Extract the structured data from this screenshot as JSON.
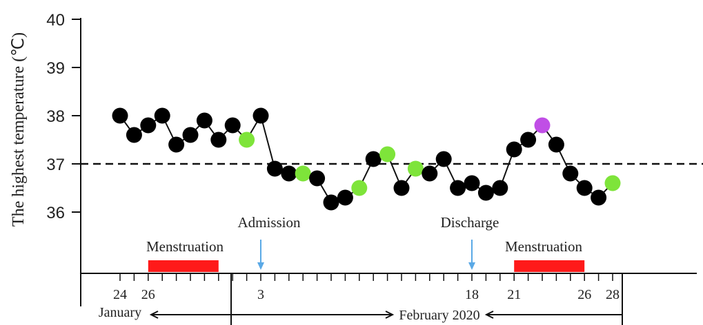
{
  "chart_data": {
    "type": "line",
    "ylabel": "The highest temperature (℃)",
    "ylim": [
      35,
      40
    ],
    "yticks": [
      "40",
      "39",
      "38",
      "37",
      "36"
    ],
    "reference_line": 37,
    "x_tick_labels": [
      "24",
      "26",
      "3",
      "18",
      "21",
      "26",
      "28"
    ],
    "month_labels": {
      "january": "January",
      "february": "February 2020"
    },
    "annotations": {
      "admission": "Admission",
      "discharge": "Discharge",
      "menstruation_1": "Menstruation",
      "menstruation_2": "Menstruation"
    },
    "point_colors": {
      "default": "#000000",
      "green": "#7ee43a",
      "purple": "#c04ee6"
    },
    "series": [
      {
        "values": [
          38.0,
          37.6,
          37.8,
          38.0,
          37.4,
          37.6,
          37.9,
          37.5,
          37.8,
          37.5,
          38.0,
          36.9,
          36.8,
          36.8,
          36.7,
          36.2,
          36.3,
          36.5,
          37.1,
          37.2,
          36.5,
          36.9,
          36.8,
          37.1,
          36.5,
          36.6,
          36.4,
          36.5,
          37.3,
          37.5,
          37.8,
          37.4,
          36.8,
          36.5,
          36.3,
          36.6
        ],
        "point_types": [
          "b",
          "b",
          "b",
          "b",
          "b",
          "b",
          "b",
          "b",
          "b",
          "g",
          "b",
          "b",
          "b",
          "g",
          "b",
          "b",
          "b",
          "g",
          "b",
          "g",
          "b",
          "g",
          "b",
          "b",
          "b",
          "b",
          "b",
          "b",
          "b",
          "b",
          "p",
          "b",
          "b",
          "b",
          "b",
          "g"
        ]
      }
    ],
    "menstruation_periods": [
      {
        "start_day": 2,
        "end_day": 7
      },
      {
        "start_day": 28,
        "end_day": 33
      }
    ],
    "admission_day": 10,
    "discharge_day": 25
  }
}
